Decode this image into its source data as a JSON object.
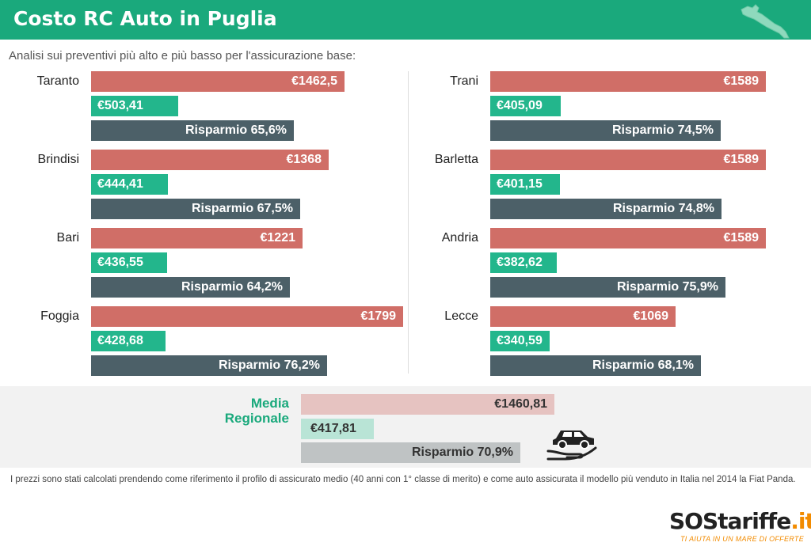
{
  "header": {
    "title": "Costo RC Auto in Puglia",
    "accent_color": "#1aa97c",
    "map_icon": "puglia-map-icon"
  },
  "subtitle": "Analisi sui preventivi più alto e più basso per l'assicurazione base:",
  "colors": {
    "high": "#d06e67",
    "low": "#23b68c",
    "saving": "#4c6068"
  },
  "chart_data": {
    "type": "bar",
    "title": "Costo RC Auto in Puglia",
    "unit": "€",
    "groups": [
      {
        "city": "Taranto",
        "high": 1462.5,
        "low": 503.41,
        "saving_pct": 65.6,
        "high_label": "€1462,5",
        "low_label": "€503,41",
        "saving_label": "Risparmio 65,6%"
      },
      {
        "city": "Brindisi",
        "high": 1368,
        "low": 444.41,
        "saving_pct": 67.5,
        "high_label": "€1368",
        "low_label": "€444,41",
        "saving_label": "Risparmio 67,5%"
      },
      {
        "city": "Bari",
        "high": 1221,
        "low": 436.55,
        "saving_pct": 64.2,
        "high_label": "€1221",
        "low_label": "€436,55",
        "saving_label": "Risparmio 64,2%"
      },
      {
        "city": "Foggia",
        "high": 1799,
        "low": 428.68,
        "saving_pct": 76.2,
        "high_label": "€1799",
        "low_label": "€428,68",
        "saving_label": "Risparmio 76,2%"
      },
      {
        "city": "Trani",
        "high": 1589,
        "low": 405.09,
        "saving_pct": 74.5,
        "high_label": "€1589",
        "low_label": "€405,09",
        "saving_label": "Risparmio 74,5%"
      },
      {
        "city": "Barletta",
        "high": 1589,
        "low": 401.15,
        "saving_pct": 74.8,
        "high_label": "€1589",
        "low_label": "€401,15",
        "saving_label": "Risparmio 74,8%"
      },
      {
        "city": "Andria",
        "high": 1589,
        "low": 382.62,
        "saving_pct": 75.9,
        "high_label": "€1589",
        "low_label": "€382,62",
        "saving_label": "Risparmio 75,9%"
      },
      {
        "city": "Lecce",
        "high": 1069,
        "low": 340.59,
        "saving_pct": 68.1,
        "high_label": "€1069",
        "low_label": "€340,59",
        "saving_label": "Risparmio 68,1%"
      }
    ],
    "average": {
      "label_line1": "Media",
      "label_line2": "Regionale",
      "high": 1460.81,
      "low": 417.81,
      "saving_pct": 70.9,
      "high_label": "€1460,81",
      "low_label": "€417,81",
      "saving_label": "Risparmio 70,9%"
    }
  },
  "footnote": "I prezzi sono stati calcolati prendendo come riferimento il profilo di assicurato medio (40 anni con 1° classe di merito) e come auto assicurata il modello più venduto in Italia nel 2014 la Fiat Panda.",
  "logo": {
    "sos": "SOS",
    "tariffe": "tariffe",
    "it": ".it",
    "tagline": "TI AIUTA IN UN MARE DI OFFERTE"
  },
  "icons": {
    "car": "car-in-hand-icon",
    "lifebuoy": "lifebuoy-icon"
  }
}
